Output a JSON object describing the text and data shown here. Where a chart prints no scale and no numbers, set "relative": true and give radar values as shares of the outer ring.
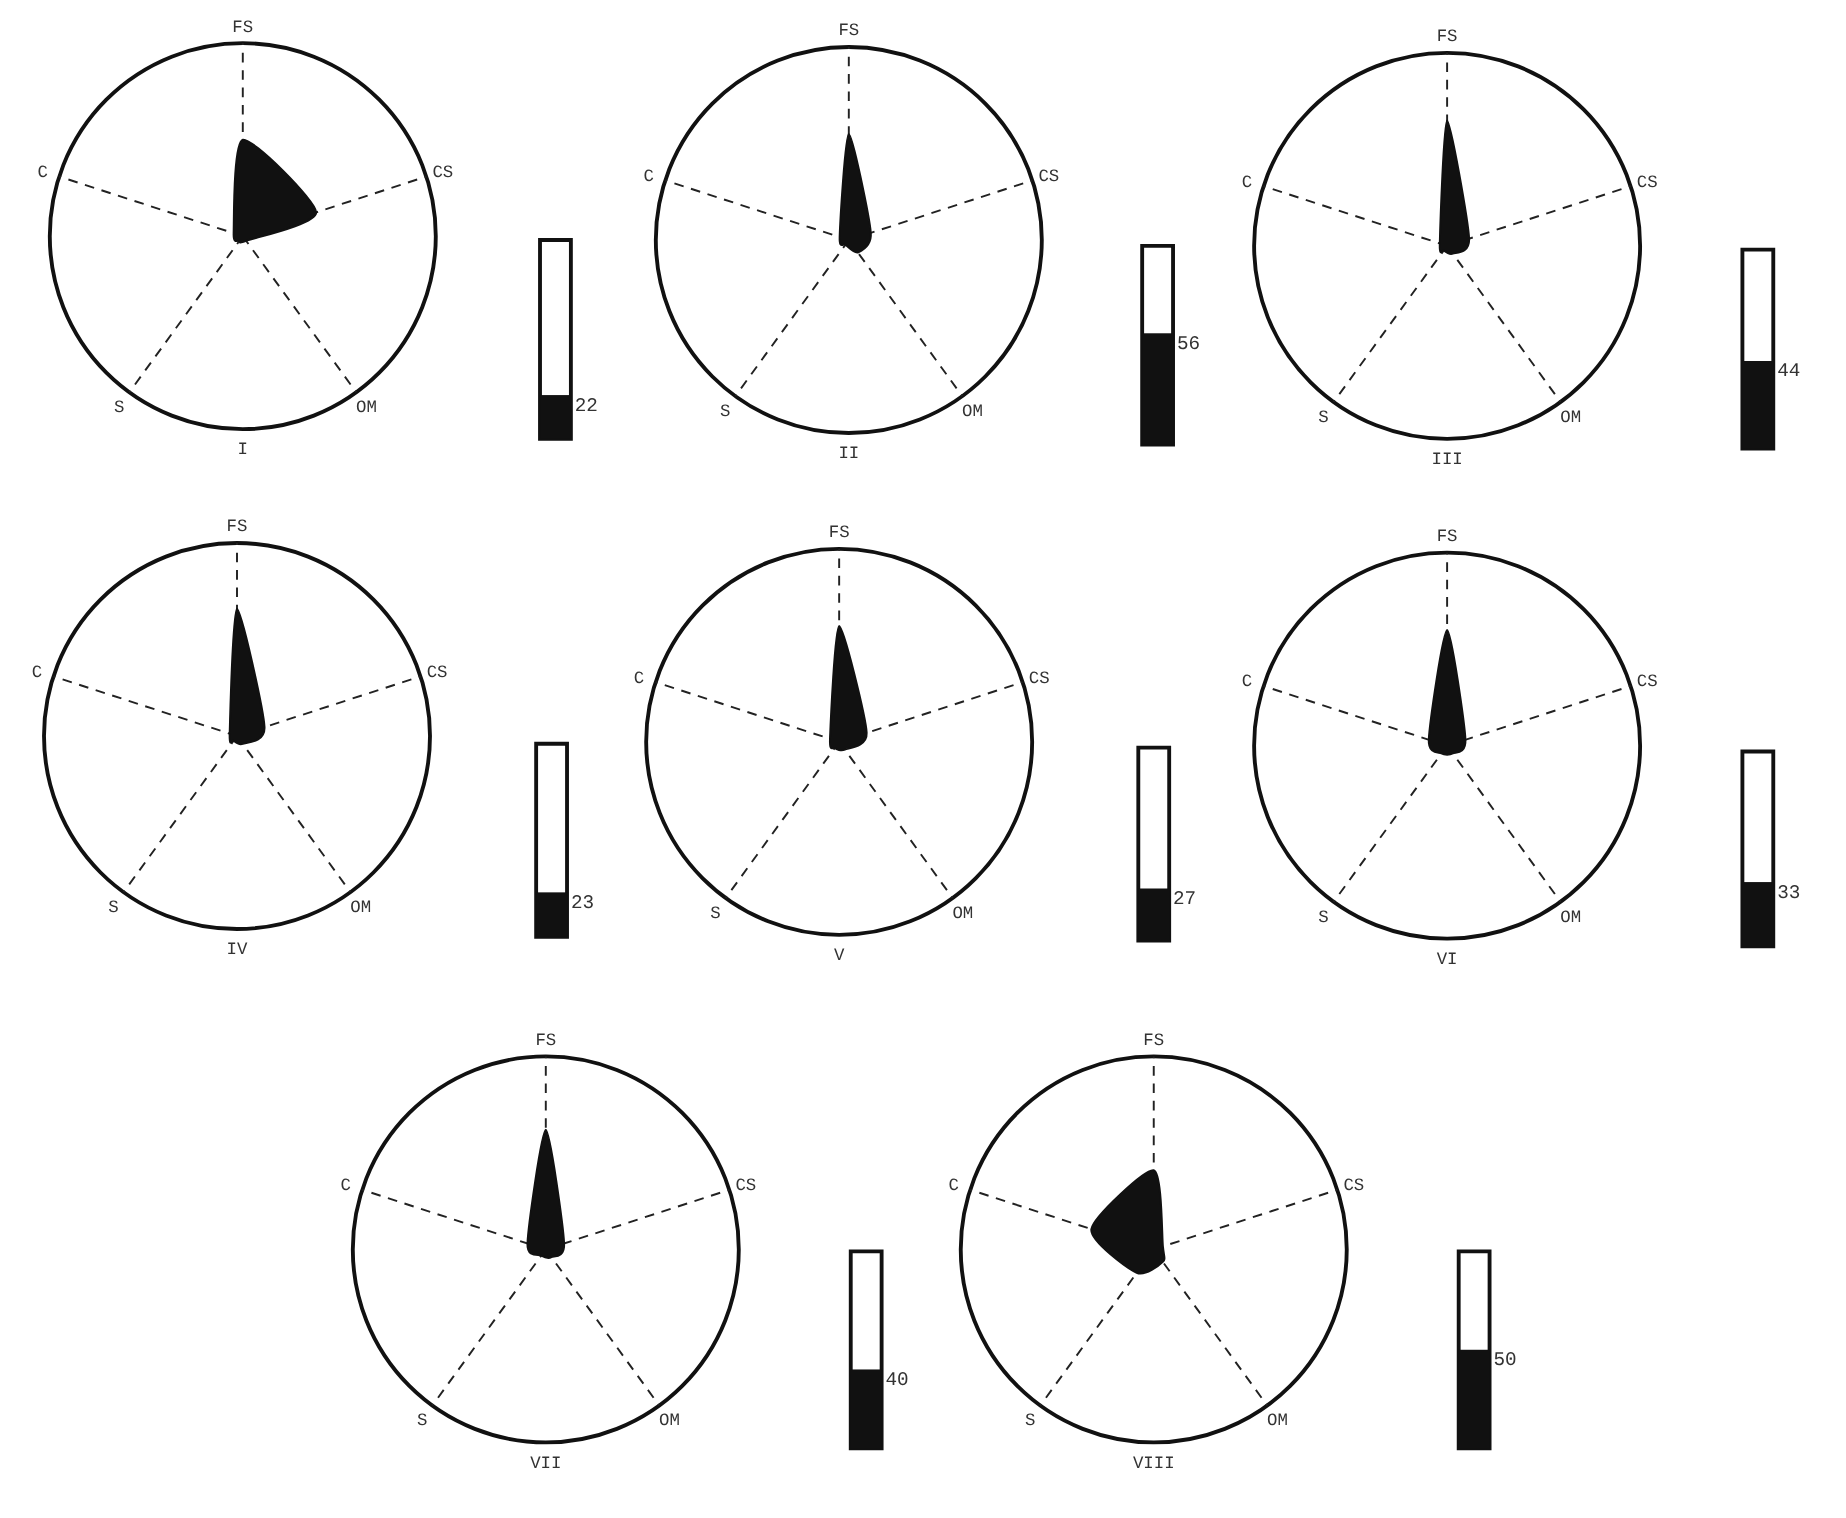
{
  "chart_data": [
    {
      "type": "radar",
      "relative": true,
      "xlabel": "I",
      "categories": [
        "FS",
        "CS",
        "OM",
        "S",
        "C"
      ],
      "series": [
        {
          "color": "#111111",
          "values": [
            0.5,
            0.4,
            0.03,
            0.03,
            0.05
          ]
        }
      ]
    },
    {
      "type": "bar",
      "categories": [
        null
      ],
      "values": [
        22
      ],
      "color": "#111111",
      "ylim": [
        0,
        100
      ],
      "data_labels": true
    },
    {
      "type": "radar",
      "relative": true,
      "xlabel": "II",
      "categories": [
        "FS",
        "CS",
        "OM",
        "S",
        "C"
      ],
      "series": [
        {
          "color": "#111111",
          "values": [
            0.55,
            0.12,
            0.08,
            0.03,
            0.05
          ]
        }
      ]
    },
    {
      "type": "bar",
      "categories": [
        null
      ],
      "values": [
        56
      ],
      "color": "#111111",
      "ylim": [
        0,
        100
      ],
      "data_labels": true
    },
    {
      "type": "radar",
      "relative": true,
      "xlabel": "III",
      "categories": [
        "FS",
        "CS",
        "OM",
        "S",
        "C"
      ],
      "series": [
        {
          "color": "#111111",
          "values": [
            0.65,
            0.12,
            0.05,
            0.03,
            0.04
          ]
        }
      ]
    },
    {
      "type": "bar",
      "categories": [
        null
      ],
      "values": [
        44
      ],
      "color": "#111111",
      "ylim": [
        0,
        100
      ],
      "data_labels": true
    },
    {
      "type": "radar",
      "relative": true,
      "xlabel": "IV",
      "categories": [
        "FS",
        "CS",
        "OM",
        "S",
        "C"
      ],
      "series": [
        {
          "color": "#111111",
          "values": [
            0.66,
            0.15,
            0.05,
            0.03,
            0.04
          ]
        }
      ]
    },
    {
      "type": "bar",
      "categories": [
        null
      ],
      "values": [
        23
      ],
      "color": "#111111",
      "ylim": [
        0,
        100
      ],
      "data_labels": true
    },
    {
      "type": "radar",
      "relative": true,
      "xlabel": "V",
      "categories": [
        "FS",
        "CS",
        "OM",
        "S",
        "C"
      ],
      "series": [
        {
          "color": "#111111",
          "values": [
            0.6,
            0.15,
            0.05,
            0.04,
            0.05
          ]
        }
      ]
    },
    {
      "type": "bar",
      "categories": [
        null
      ],
      "values": [
        27
      ],
      "color": "#111111",
      "ylim": [
        0,
        100
      ],
      "data_labels": true
    },
    {
      "type": "radar",
      "relative": true,
      "xlabel": "VI",
      "categories": [
        "FS",
        "CS",
        "OM",
        "S",
        "C"
      ],
      "series": [
        {
          "color": "#111111",
          "values": [
            0.6,
            0.1,
            0.05,
            0.05,
            0.1
          ]
        }
      ]
    },
    {
      "type": "bar",
      "categories": [
        null
      ],
      "values": [
        33
      ],
      "color": "#111111",
      "ylim": [
        0,
        100
      ],
      "data_labels": true
    },
    {
      "type": "radar",
      "relative": true,
      "xlabel": "VII",
      "categories": [
        "FS",
        "CS",
        "OM",
        "S",
        "C"
      ],
      "series": [
        {
          "color": "#111111",
          "values": [
            0.62,
            0.1,
            0.05,
            0.04,
            0.1
          ]
        }
      ]
    },
    {
      "type": "bar",
      "categories": [
        null
      ],
      "values": [
        40
      ],
      "color": "#111111",
      "ylim": [
        0,
        100
      ],
      "data_labels": true
    },
    {
      "type": "radar",
      "relative": true,
      "xlabel": "VIII",
      "categories": [
        "FS",
        "CS",
        "OM",
        "S",
        "C"
      ],
      "series": [
        {
          "color": "#111111",
          "values": [
            0.41,
            0.05,
            0.08,
            0.15,
            0.34
          ]
        }
      ]
    },
    {
      "type": "bar",
      "categories": [
        null
      ],
      "values": [
        50
      ],
      "color": "#111111",
      "ylim": [
        0,
        100
      ],
      "data_labels": true
    }
  ]
}
